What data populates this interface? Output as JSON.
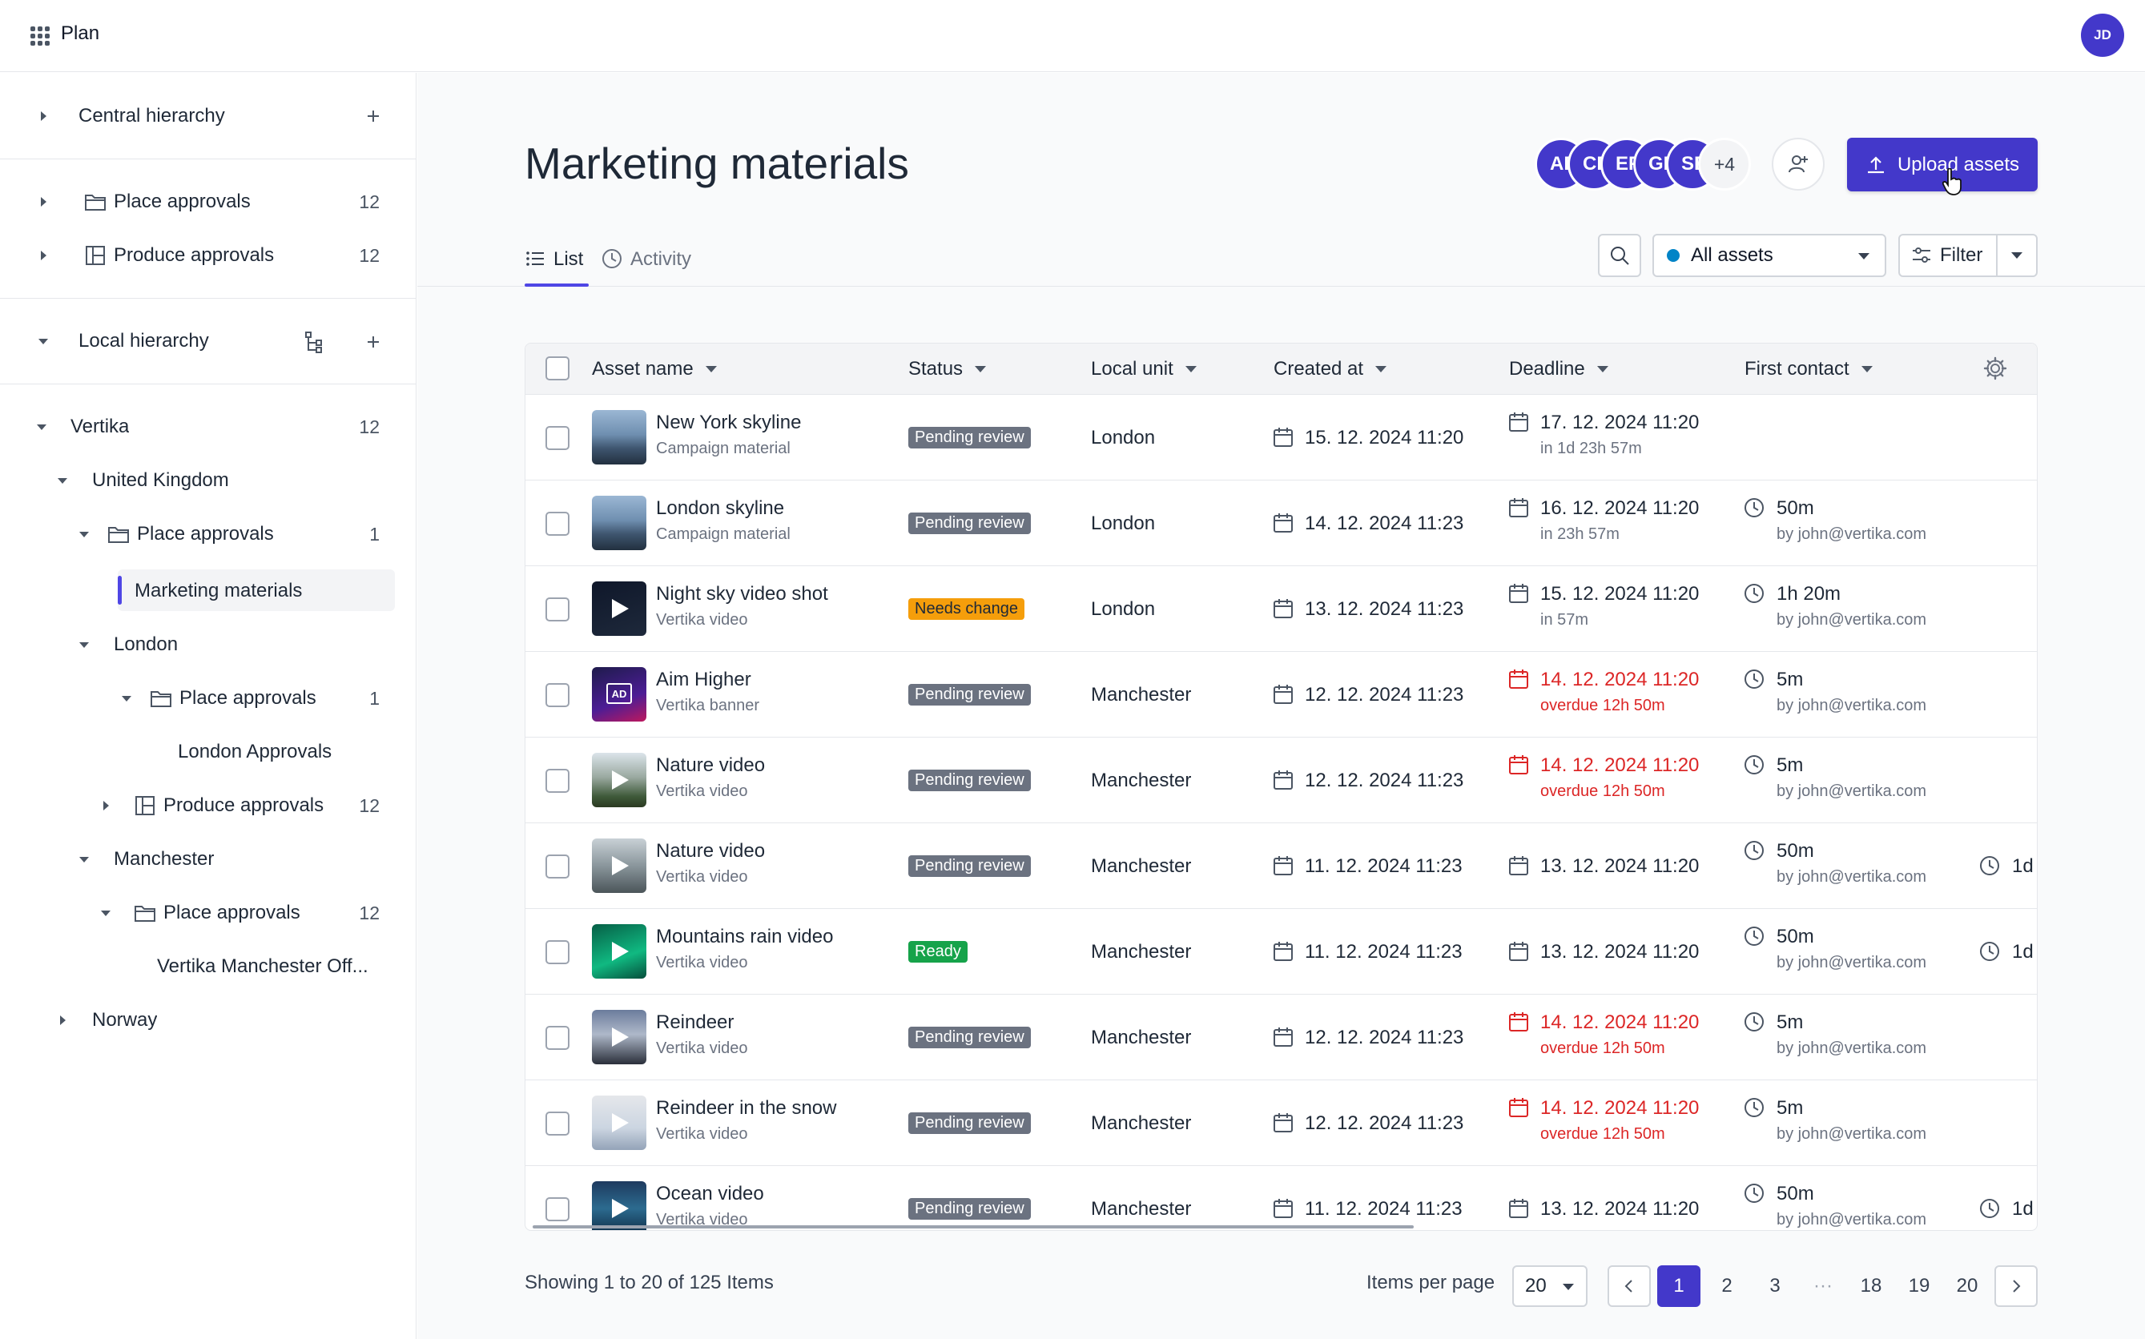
{
  "app": {
    "name": "Plan",
    "user_initials": "JD"
  },
  "sidebar": {
    "central": {
      "label": "Central hierarchy"
    },
    "central_items": [
      {
        "label": "Place approvals",
        "count": "12"
      },
      {
        "label": "Produce approvals",
        "count": "12"
      }
    ],
    "local": {
      "label": "Local hierarchy"
    },
    "tree": [
      {
        "label": "Vertika",
        "count": "12"
      },
      {
        "label": "United Kingdom",
        "count": ""
      },
      {
        "label": "Place approvals",
        "count": "1"
      },
      {
        "label": "Marketing materials",
        "count": ""
      },
      {
        "label": "London",
        "count": ""
      },
      {
        "label": "Place approvals",
        "count": "1"
      },
      {
        "label": "London Approvals",
        "count": ""
      },
      {
        "label": "Produce approvals",
        "count": "12"
      },
      {
        "label": "Manchester",
        "count": ""
      },
      {
        "label": "Place approvals",
        "count": "12"
      },
      {
        "label": "Vertika Manchester Off...",
        "count": ""
      },
      {
        "label": "Norway",
        "count": ""
      }
    ]
  },
  "page": {
    "title": "Marketing materials"
  },
  "collaborators": [
    "AB",
    "CD",
    "EF",
    "GH",
    "SE"
  ],
  "collaborators_more": "+4",
  "upload_label": "Upload assets",
  "tabs": [
    {
      "label": "List"
    },
    {
      "label": "Activity"
    }
  ],
  "toolbar": {
    "assets_label": "All assets",
    "filter_label": "Filter"
  },
  "columns": [
    "Asset name",
    "Status",
    "Local unit",
    "Created at",
    "Deadline",
    "First contact"
  ],
  "colors": {
    "accent": "#4338ca",
    "pending": "#6b7280",
    "needs_change": "#f59e0b",
    "ready": "#16a34a",
    "overdue": "#dc2626"
  },
  "rows": [
    {
      "name": "New York skyline",
      "type": "Campaign material",
      "thumb": "city-image",
      "status": "Pending review",
      "status_kind": "pending",
      "unit": "London",
      "created": "15. 12. 2024 11:20",
      "deadline": "17. 12. 2024 11:20",
      "deadline_sub": "in 1d 23h 57m",
      "overdue": false,
      "contact": "",
      "contact_by": "",
      "extra": ""
    },
    {
      "name": "London skyline",
      "type": "Campaign material",
      "thumb": "city-image",
      "status": "Pending review",
      "status_kind": "pending",
      "unit": "London",
      "created": "14. 12. 2024 11:23",
      "deadline": "16. 12. 2024 11:20",
      "deadline_sub": "in 23h 57m",
      "overdue": false,
      "contact": "50m",
      "contact_by": "by john@vertika.com",
      "extra": ""
    },
    {
      "name": "Night sky video shot",
      "type": "Vertika video",
      "thumb": "night-video",
      "status": "Needs change",
      "status_kind": "needs_change",
      "unit": "London",
      "created": "13. 12. 2024 11:23",
      "deadline": "15. 12. 2024 11:20",
      "deadline_sub": "in 57m",
      "overdue": false,
      "contact": "1h 20m",
      "contact_by": "by john@vertika.com",
      "extra": ""
    },
    {
      "name": "Aim Higher",
      "type": "Vertika banner",
      "thumb": "banner-image",
      "status": "Pending review",
      "status_kind": "pending",
      "unit": "Manchester",
      "created": "12. 12. 2024 11:23",
      "deadline": "14. 12. 2024 11:20",
      "deadline_sub": "overdue 12h 50m",
      "overdue": true,
      "contact": "5m",
      "contact_by": "by john@vertika.com",
      "extra": ""
    },
    {
      "name": "Nature video",
      "type": "Vertika video",
      "thumb": "nature-video",
      "status": "Pending review",
      "status_kind": "pending",
      "unit": "Manchester",
      "created": "12. 12. 2024 11:23",
      "deadline": "14. 12. 2024 11:20",
      "deadline_sub": "overdue 12h 50m",
      "overdue": true,
      "contact": "5m",
      "contact_by": "by john@vertika.com",
      "extra": ""
    },
    {
      "name": "Nature video",
      "type": "Vertika video",
      "thumb": "mountain-video",
      "status": "Pending review",
      "status_kind": "pending",
      "unit": "Manchester",
      "created": "11. 12. 2024 11:23",
      "deadline": "13. 12. 2024 11:20",
      "deadline_sub": "",
      "overdue": false,
      "contact": "50m",
      "contact_by": "by john@vertika.com",
      "extra": "1d"
    },
    {
      "name": "Mountains rain video",
      "type": "Vertika video",
      "thumb": "green-video",
      "status": "Ready",
      "status_kind": "ready",
      "unit": "Manchester",
      "created": "11. 12. 2024 11:23",
      "deadline": "13. 12. 2024 11:20",
      "deadline_sub": "",
      "overdue": false,
      "contact": "50m",
      "contact_by": "by john@vertika.com",
      "extra": "1d"
    },
    {
      "name": "Reindeer",
      "type": "Vertika video",
      "thumb": "dusk-video",
      "status": "Pending review",
      "status_kind": "pending",
      "unit": "Manchester",
      "created": "12. 12. 2024 11:23",
      "deadline": "14. 12. 2024 11:20",
      "deadline_sub": "overdue 12h 50m",
      "overdue": true,
      "contact": "5m",
      "contact_by": "by john@vertika.com",
      "extra": ""
    },
    {
      "name": "Reindeer in the snow",
      "type": "Vertika video",
      "thumb": "snow-video",
      "status": "Pending review",
      "status_kind": "pending",
      "unit": "Manchester",
      "created": "12. 12. 2024 11:23",
      "deadline": "14. 12. 2024 11:20",
      "deadline_sub": "overdue 12h 50m",
      "overdue": true,
      "contact": "5m",
      "contact_by": "by john@vertika.com",
      "extra": ""
    },
    {
      "name": "Ocean video",
      "type": "Vertika video",
      "thumb": "ocean-video",
      "status": "Pending review",
      "status_kind": "pending",
      "unit": "Manchester",
      "created": "11. 12. 2024 11:23",
      "deadline": "13. 12. 2024 11:20",
      "deadline_sub": "",
      "overdue": false,
      "contact": "50m",
      "contact_by": "by john@vertika.com",
      "extra": "1d"
    }
  ],
  "footer": {
    "showing": "Showing 1 to 20 of 125 Items",
    "items_per_page_label": "Items per page",
    "items_per_page": "20",
    "pages": [
      "1",
      "2",
      "3",
      "···",
      "18",
      "19",
      "20"
    ],
    "current_page": "1"
  }
}
